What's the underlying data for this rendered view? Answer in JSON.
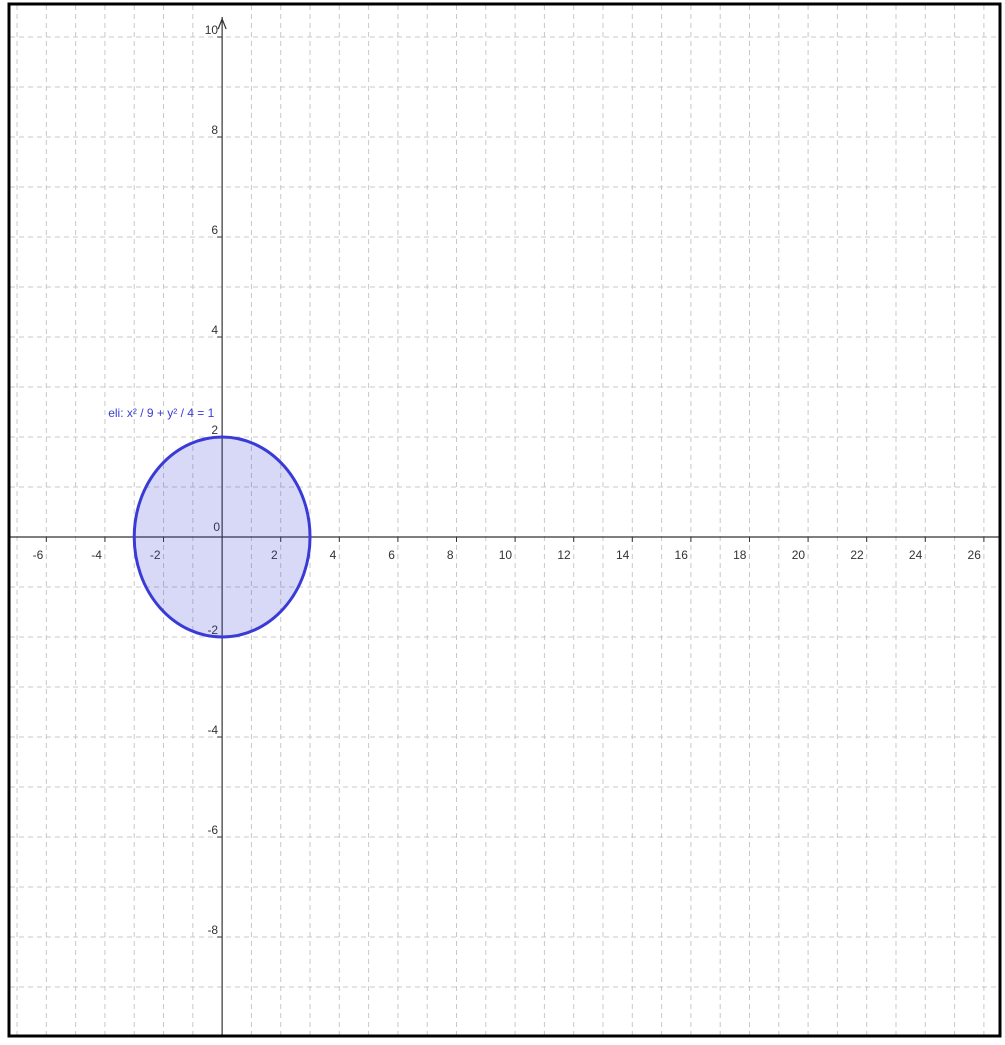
{
  "chart_data": {
    "type": "ellipse",
    "xlim": [
      -7.24,
      26.55
    ],
    "ylim": [
      -9.96,
      10.64
    ],
    "xticks": [
      -6,
      -4,
      -2,
      0,
      2,
      4,
      6,
      8,
      10,
      12,
      14,
      16,
      18,
      20,
      22,
      24,
      26
    ],
    "yticks": [
      -8,
      -6,
      -4,
      -2,
      2,
      4,
      6,
      8,
      10
    ],
    "grid": true,
    "ellipse": {
      "label": "eli: x² / 9 + y² / 4 = 1",
      "cx": 0,
      "cy": 0,
      "rx": 3,
      "ry": 2,
      "color": "#3a3ad6"
    }
  }
}
